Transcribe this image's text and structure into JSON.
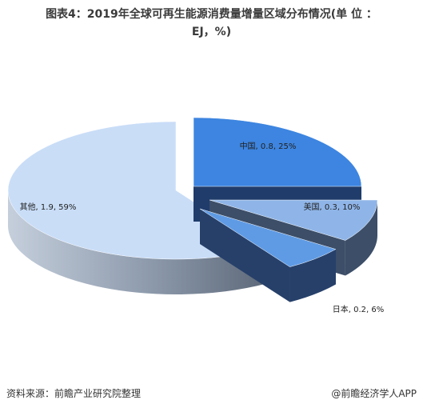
{
  "title_line1": "图表4：2019年全球可再生能源消费量增量区域分布情况(单 位 ：",
  "title_line2": "EJ，%)",
  "footer_source": "资料来源：前瞻产业研究院整理",
  "footer_brand": "@前瞻经济学人APP",
  "chart_data": {
    "type": "pie",
    "title": "图表4：2019年全球可再生能源消费量增量区域分布情况(单 位 ：EJ，%)",
    "slices": [
      {
        "name": "中国",
        "value": 0.8,
        "percent": 25,
        "label": "中国, 0.8, 25%",
        "color": "#3d85e0",
        "side": "#1f3c6b"
      },
      {
        "name": "美国",
        "value": 0.3,
        "percent": 10,
        "label": "美国, 0.3, 10%",
        "color": "#8fb5e8",
        "side": "#3c4e68"
      },
      {
        "name": "日本",
        "value": 0.2,
        "percent": 6,
        "label": "日本, 0.2, 6%",
        "color": "#5f9be5",
        "side": "#26406a"
      },
      {
        "name": "其他",
        "value": 1.9,
        "percent": 59,
        "label": "其他, 1.9, 59%",
        "color": "#c9ddf7",
        "side": "#8f9fb4"
      }
    ]
  }
}
